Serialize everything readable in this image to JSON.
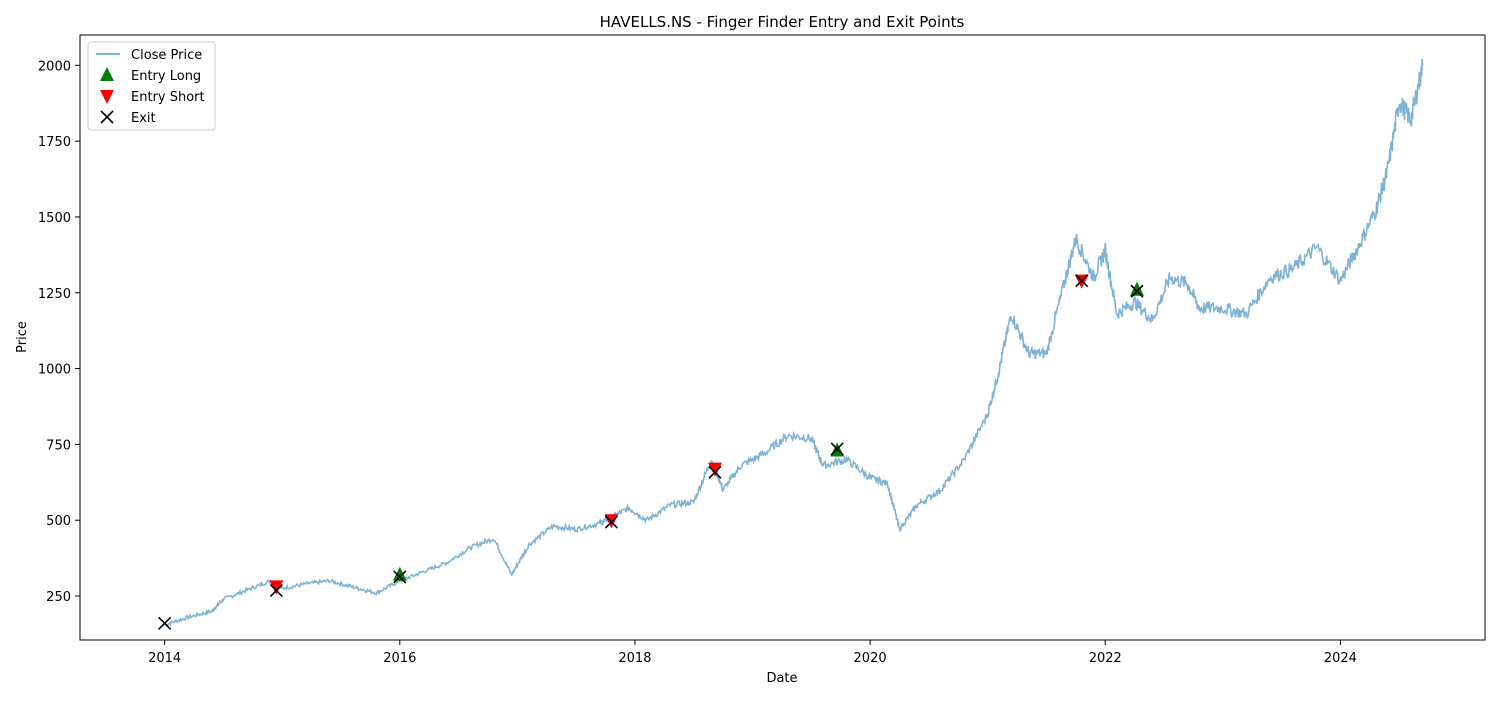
{
  "chart_data": {
    "type": "line",
    "title": "HAVELLS.NS - Finger Finder Entry and Exit Points",
    "xlabel": "Date",
    "ylabel": "Price",
    "xlim": [
      2013.28,
      2025.23
    ],
    "ylim": [
      105,
      2100
    ],
    "x_ticks": [
      2014,
      2016,
      2018,
      2020,
      2022,
      2024
    ],
    "x_tick_labels": [
      "2014",
      "2016",
      "2018",
      "2020",
      "2022",
      "2024"
    ],
    "y_ticks": [
      250,
      500,
      750,
      1000,
      1250,
      1500,
      1750,
      2000
    ],
    "y_tick_labels": [
      "250",
      "500",
      "750",
      "1000",
      "1250",
      "1500",
      "1750",
      "2000"
    ],
    "grid": false,
    "legend": {
      "placement": "top-left",
      "entries": [
        {
          "label": "Close Price",
          "marker": "line",
          "color": "#7fb3d5"
        },
        {
          "label": "Entry Long",
          "marker": "triangle-up",
          "color": "#008000"
        },
        {
          "label": "Entry Short",
          "marker": "triangle-down",
          "color": "#ff0000"
        },
        {
          "label": "Exit",
          "marker": "x",
          "color": "#000000"
        }
      ]
    },
    "series": [
      {
        "name": "Close Price",
        "kind": "line",
        "color": "#7fb3d5",
        "x": [
          2014.0,
          2014.2,
          2014.4,
          2014.5,
          2014.7,
          2014.9,
          2015.0,
          2015.2,
          2015.4,
          2015.6,
          2015.8,
          2016.0,
          2016.2,
          2016.4,
          2016.6,
          2016.8,
          2016.95,
          2017.1,
          2017.3,
          2017.5,
          2017.7,
          2017.8,
          2017.95,
          2018.1,
          2018.3,
          2018.5,
          2018.65,
          2018.75,
          2018.9,
          2019.1,
          2019.3,
          2019.5,
          2019.6,
          2019.8,
          2020.0,
          2020.15,
          2020.25,
          2020.4,
          2020.6,
          2020.8,
          2021.0,
          2021.1,
          2021.2,
          2021.35,
          2021.5,
          2021.65,
          2021.75,
          2021.9,
          2022.0,
          2022.1,
          2022.25,
          2022.4,
          2022.55,
          2022.7,
          2022.8,
          2023.0,
          2023.2,
          2023.4,
          2023.6,
          2023.8,
          2024.0,
          2024.15,
          2024.3,
          2024.4,
          2024.5,
          2024.6,
          2024.7
        ],
        "y": [
          155,
          180,
          200,
          240,
          270,
          300,
          275,
          290,
          300,
          280,
          260,
          300,
          330,
          360,
          410,
          440,
          320,
          420,
          480,
          470,
          490,
          510,
          540,
          500,
          550,
          560,
          700,
          600,
          680,
          720,
          780,
          770,
          680,
          700,
          640,
          620,
          470,
          550,
          600,
          700,
          850,
          1000,
          1180,
          1050,
          1050,
          1280,
          1430,
          1300,
          1390,
          1180,
          1220,
          1160,
          1300,
          1280,
          1200,
          1200,
          1180,
          1300,
          1330,
          1400,
          1290,
          1400,
          1520,
          1650,
          1880,
          1820,
          2000
        ]
      },
      {
        "name": "Entry Long",
        "kind": "marker",
        "marker": "triangle-up",
        "color": "#008000",
        "x": [
          2016.0,
          2019.72,
          2022.27
        ],
        "y": [
          320,
          730,
          1260
        ]
      },
      {
        "name": "Entry Short",
        "kind": "marker",
        "marker": "triangle-down",
        "color": "#ff0000",
        "x": [
          2014.95,
          2017.8,
          2018.68,
          2021.8
        ],
        "y": [
          282,
          500,
          670,
          1290
        ]
      },
      {
        "name": "Exit",
        "kind": "marker",
        "marker": "x",
        "color": "#000000",
        "x": [
          2014.0,
          2014.95,
          2016.0,
          2017.8,
          2018.68,
          2019.72,
          2021.8,
          2022.27
        ],
        "y": [
          160,
          268,
          313,
          494,
          658,
          735,
          1290,
          1255
        ]
      }
    ]
  }
}
